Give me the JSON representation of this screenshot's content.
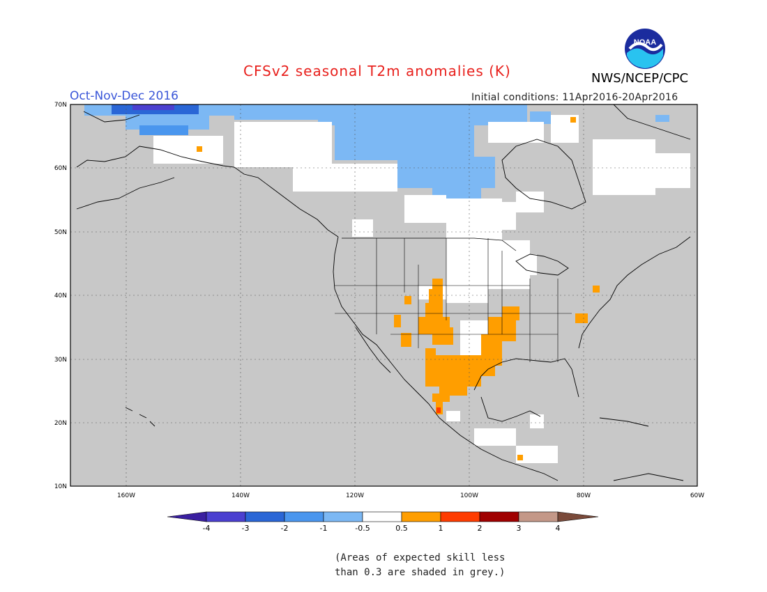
{
  "header": {
    "title": "CFSv2 seasonal T2m anomalies (K)",
    "period": "Oct-Nov-Dec 2016",
    "initial_conditions": "Initial conditions: 11Apr2016-20Apr2016",
    "agency": "NWS/NCEP/CPC",
    "logo_text": "NOAA"
  },
  "map": {
    "lat_labels": [
      "70N",
      "60N",
      "50N",
      "40N",
      "30N",
      "20N",
      "10N"
    ],
    "lon_labels": [
      "160W",
      "140W",
      "120W",
      "100W",
      "80W",
      "60W"
    ],
    "background_color": "#c8c8c8",
    "land_outline_color": "#000000"
  },
  "colorbar": {
    "labels": [
      "-4",
      "-3",
      "-2",
      "-1",
      "-0.5",
      "0.5",
      "1",
      "2",
      "3",
      "4"
    ],
    "colors": [
      "#3a1fa0",
      "#4b40d0",
      "#2a66d6",
      "#4a96ee",
      "#7cb8f4",
      "#ffffff",
      "#ff9e00",
      "#ff3c00",
      "#a00000",
      "#c49888",
      "#7a4a3a"
    ]
  },
  "footnote": {
    "line1": "(Areas of expected skill less",
    "line2": "than 0.3 are shaded in grey.)"
  }
}
